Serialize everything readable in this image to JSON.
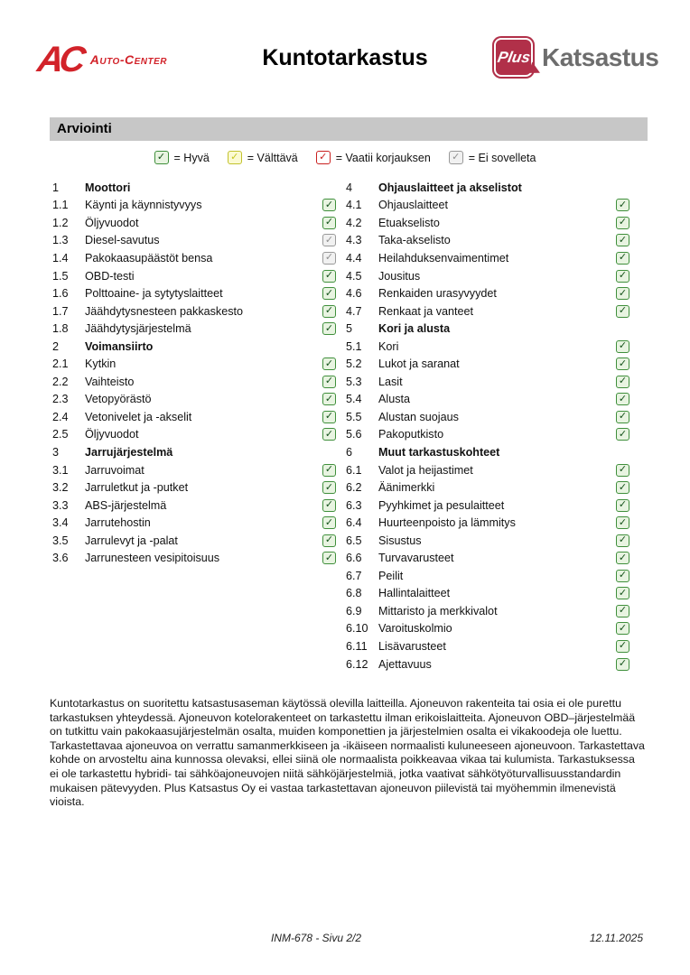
{
  "header": {
    "logo_left": {
      "mark": "AC",
      "name": "Auto-Center"
    },
    "title": "Kuntotarkastus",
    "logo_right": {
      "badge": "Plus",
      "name": "Katsastus"
    }
  },
  "section_bar": "Arviointi",
  "check_glyph": "✓",
  "status_colors": {
    "good": {
      "border": "#3f8f3b",
      "fill": "#e8f4e1",
      "check": "#14511a"
    },
    "fair": {
      "border": "#c2c22e",
      "fill": "#fbfad2",
      "check": "#c6c61e"
    },
    "repair": {
      "border": "#c9201f",
      "fill": "#ffffff",
      "check": "#c9201f"
    },
    "na": {
      "border": "#999999",
      "fill": "#f1f1f1",
      "check": "#8f8f8f"
    }
  },
  "legend": [
    {
      "status": "good",
      "label": "= Hyvä"
    },
    {
      "status": "fair",
      "label": "= Välttävä"
    },
    {
      "status": "repair",
      "label": "= Vaatii korjauksen"
    },
    {
      "status": "na",
      "label": "= Ei sovelleta"
    }
  ],
  "checklist": {
    "left": [
      {
        "num": "1",
        "label": "Moottori",
        "header": true
      },
      {
        "num": "1.1",
        "label": "Käynti ja käynnistyvyys",
        "status": "good"
      },
      {
        "num": "1.2",
        "label": "Öljyvuodot",
        "status": "good"
      },
      {
        "num": "1.3",
        "label": "Diesel-savutus",
        "status": "na"
      },
      {
        "num": "1.4",
        "label": "Pakokaasupäästöt bensa",
        "status": "na"
      },
      {
        "num": "1.5",
        "label": "OBD-testi",
        "status": "good"
      },
      {
        "num": "1.6",
        "label": "Polttoaine- ja sytytyslaitteet",
        "status": "good"
      },
      {
        "num": "1.7",
        "label": "Jäähdytysnesteen pakkaskesto",
        "status": "good"
      },
      {
        "num": "1.8",
        "label": "Jäähdytysjärjestelmä",
        "status": "good"
      },
      {
        "num": "2",
        "label": "Voimansiirto",
        "header": true
      },
      {
        "num": "2.1",
        "label": "Kytkin",
        "status": "good"
      },
      {
        "num": "2.2",
        "label": "Vaihteisto",
        "status": "good"
      },
      {
        "num": "2.3",
        "label": "Vetopyörästö",
        "status": "good"
      },
      {
        "num": "2.4",
        "label": "Vetonivelet ja -akselit",
        "status": "good"
      },
      {
        "num": "2.5",
        "label": "Öljyvuodot",
        "status": "good"
      },
      {
        "num": "3",
        "label": "Jarrujärjestelmä",
        "header": true
      },
      {
        "num": "3.1",
        "label": "Jarruvoimat",
        "status": "good"
      },
      {
        "num": "3.2",
        "label": "Jarruletkut ja -putket",
        "status": "good"
      },
      {
        "num": "3.3",
        "label": "ABS-järjestelmä",
        "status": "good"
      },
      {
        "num": "3.4",
        "label": "Jarrutehostin",
        "status": "good"
      },
      {
        "num": "3.5",
        "label": "Jarrulevyt ja -palat",
        "status": "good"
      },
      {
        "num": "3.6",
        "label": "Jarrunesteen vesipitoisuus",
        "status": "good"
      }
    ],
    "right": [
      {
        "num": "4",
        "label": "Ohjauslaitteet ja akselistot",
        "header": true
      },
      {
        "num": "4.1",
        "label": "Ohjauslaitteet",
        "status": "good"
      },
      {
        "num": "4.2",
        "label": "Etuakselisto",
        "status": "good"
      },
      {
        "num": "4.3",
        "label": "Taka-akselisto",
        "status": "good"
      },
      {
        "num": "4.4",
        "label": "Heilahduksenvaimentimet",
        "status": "good"
      },
      {
        "num": "4.5",
        "label": "Jousitus",
        "status": "good"
      },
      {
        "num": "4.6",
        "label": "Renkaiden urasyvyydet",
        "status": "good"
      },
      {
        "num": "4.7",
        "label": "Renkaat ja vanteet",
        "status": "good"
      },
      {
        "num": "5",
        "label": "Kori ja alusta",
        "header": true
      },
      {
        "num": "5.1",
        "label": "Kori",
        "status": "good"
      },
      {
        "num": "5.2",
        "label": "Lukot ja saranat",
        "status": "good"
      },
      {
        "num": "5.3",
        "label": "Lasit",
        "status": "good"
      },
      {
        "num": "5.4",
        "label": "Alusta",
        "status": "good"
      },
      {
        "num": "5.5",
        "label": "Alustan suojaus",
        "status": "good"
      },
      {
        "num": "5.6",
        "label": "Pakoputkisto",
        "status": "good"
      },
      {
        "num": "6",
        "label": "Muut tarkastuskohteet",
        "header": true
      },
      {
        "num": "6.1",
        "label": "Valot ja heijastimet",
        "status": "good"
      },
      {
        "num": "6.2",
        "label": "Äänimerkki",
        "status": "good"
      },
      {
        "num": "6.3",
        "label": "Pyyhkimet ja pesulaitteet",
        "status": "good"
      },
      {
        "num": "6.4",
        "label": "Huurteenpoisto ja lämmitys",
        "status": "good"
      },
      {
        "num": "6.5",
        "label": "Sisustus",
        "status": "good"
      },
      {
        "num": "6.6",
        "label": "Turvavarusteet",
        "status": "good"
      },
      {
        "num": "6.7",
        "label": "Peilit",
        "status": "good"
      },
      {
        "num": "6.8",
        "label": "Hallintalaitteet",
        "status": "good"
      },
      {
        "num": "6.9",
        "label": "Mittaristo ja merkkivalot",
        "status": "good"
      },
      {
        "num": "6.10",
        "label": "Varoituskolmio",
        "status": "good"
      },
      {
        "num": "6.11",
        "label": "Lisävarusteet",
        "status": "good"
      },
      {
        "num": "6.12",
        "label": "Ajettavuus",
        "status": "good"
      }
    ]
  },
  "disclaimer": "Kuntotarkastus on suoritettu katsastusaseman käytössä olevilla laitteilla. Ajoneuvon rakenteita tai osia ei ole purettu tarkastuksen yhteydessä. Ajoneuvon kotelorakenteet on tarkastettu ilman erikoislaitteita. Ajoneuvon OBD–järjestelmää on tutkittu vain pakokaasujärjestelmän osalta, muiden komponettien ja järjestelmien osalta ei vikakoodeja ole luettu. Tarkastettavaa ajoneuvoa on verrattu samanmerkkiseen ja -ikäiseen normaalisti kuluneeseen ajoneuvoon. Tarkastettava kohde on arvosteltu aina kunnossa olevaksi, ellei siinä ole normaalista poikkeavaa vikaa tai kulumista. Tarkastuksessa ei ole tarkastettu hybridi- tai sähköajoneuvojen niitä sähköjärjestelmiä, jotka vaativat sähkötyöturvallisuusstandardin mukaisen pätevyyden. Plus Katsastus Oy ei vastaa tarkastettavan ajoneuvon piilevistä tai myöhemmin ilmenevistä vioista.",
  "footer": {
    "center": "INM-678 - Sivu 2/2",
    "right": "12.11.2025"
  }
}
